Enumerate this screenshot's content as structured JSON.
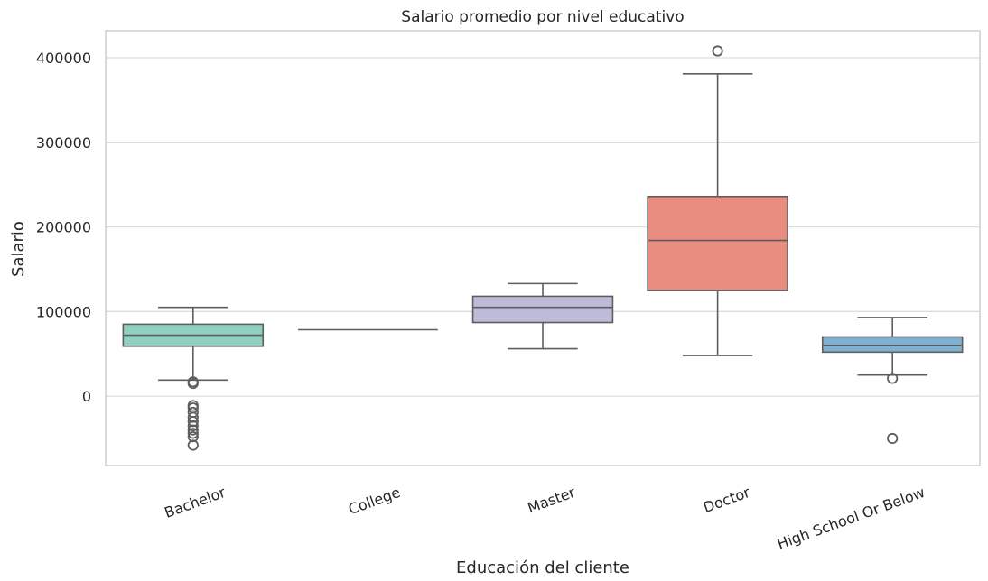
{
  "chart_data": {
    "type": "box",
    "title": "Salario promedio por nivel educativo",
    "xlabel": "Educación del cliente",
    "ylabel": "Salario",
    "ylim": [
      -82000,
      432000
    ],
    "yticks": [
      0,
      100000,
      200000,
      300000,
      400000
    ],
    "ytick_labels": [
      "0",
      "100000",
      "200000",
      "300000",
      "400000"
    ],
    "grid": true,
    "categories": [
      "Bachelor",
      "College",
      "Master",
      "Doctor",
      "High School Or Below"
    ],
    "series": [
      {
        "category": "Bachelor",
        "color": "#8fd0c1",
        "whisker_low": 19000,
        "q1": 59000,
        "median": 72000,
        "q3": 85000,
        "whisker_high": 105000,
        "outliers": [
          17000,
          15000,
          -11000,
          -14000,
          -19000,
          -25000,
          -30000,
          -35000,
          -40000,
          -44000,
          -48000,
          -58000
        ]
      },
      {
        "category": "College",
        "color": "#ffffb3",
        "whisker_low": 78500,
        "q1": 78500,
        "median": 78500,
        "q3": 78500,
        "whisker_high": 78500,
        "outliers": []
      },
      {
        "category": "Master",
        "color": "#bebada",
        "whisker_low": 56000,
        "q1": 87000,
        "median": 105000,
        "q3": 118000,
        "whisker_high": 133000,
        "outliers": []
      },
      {
        "category": "Doctor",
        "color": "#ea8d81",
        "whisker_low": 48000,
        "q1": 125000,
        "median": 184000,
        "q3": 236000,
        "whisker_high": 381000,
        "outliers": [
          408000
        ]
      },
      {
        "category": "High School Or Below",
        "color": "#80b1d3",
        "whisker_low": 25000,
        "q1": 52000,
        "median": 60000,
        "q3": 70000,
        "whisker_high": 93000,
        "outliers": [
          21000,
          -50000
        ]
      }
    ]
  }
}
